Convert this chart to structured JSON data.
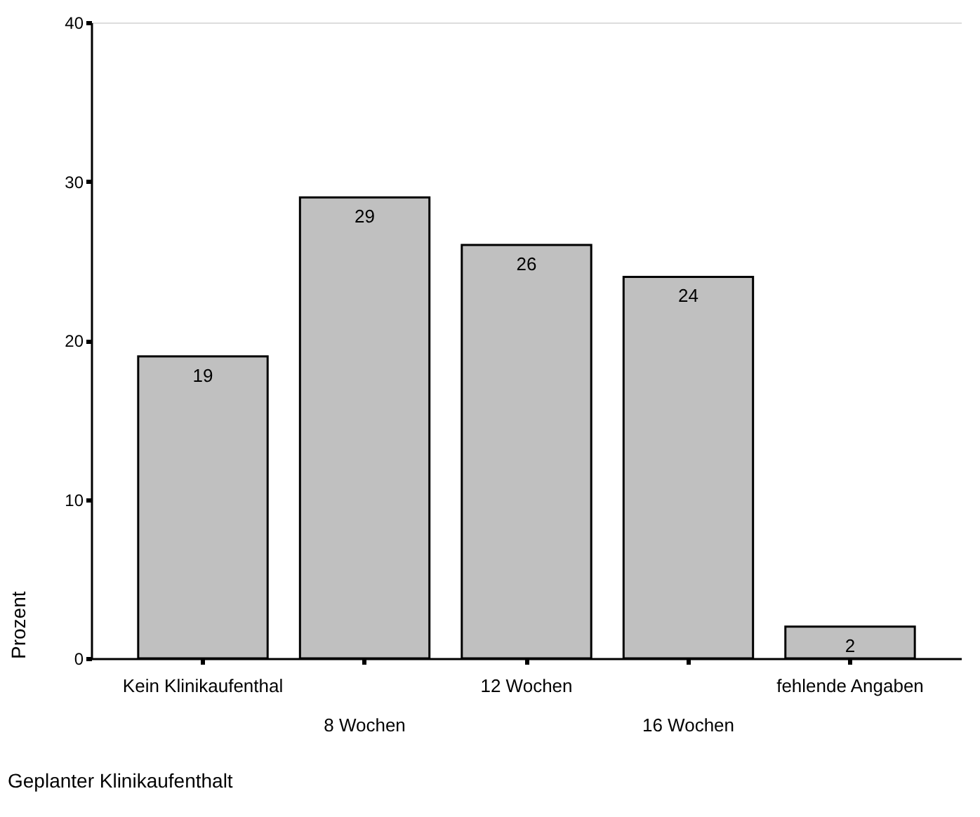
{
  "chart_data": {
    "type": "bar",
    "xlabel": "Geplanter Klinikaufenthalt",
    "ylabel": "Prozent",
    "categories": [
      "Kein Klinikaufenthal",
      "8 Wochen",
      "12 Wochen",
      "16 Wochen",
      "fehlende Angaben"
    ],
    "values": [
      19,
      29,
      26,
      24,
      2
    ],
    "color": "#c0c0c0",
    "ylim": [
      0,
      40
    ],
    "yticks": [
      0,
      10,
      20,
      30,
      40
    ],
    "grid": false,
    "data_labels": true
  }
}
